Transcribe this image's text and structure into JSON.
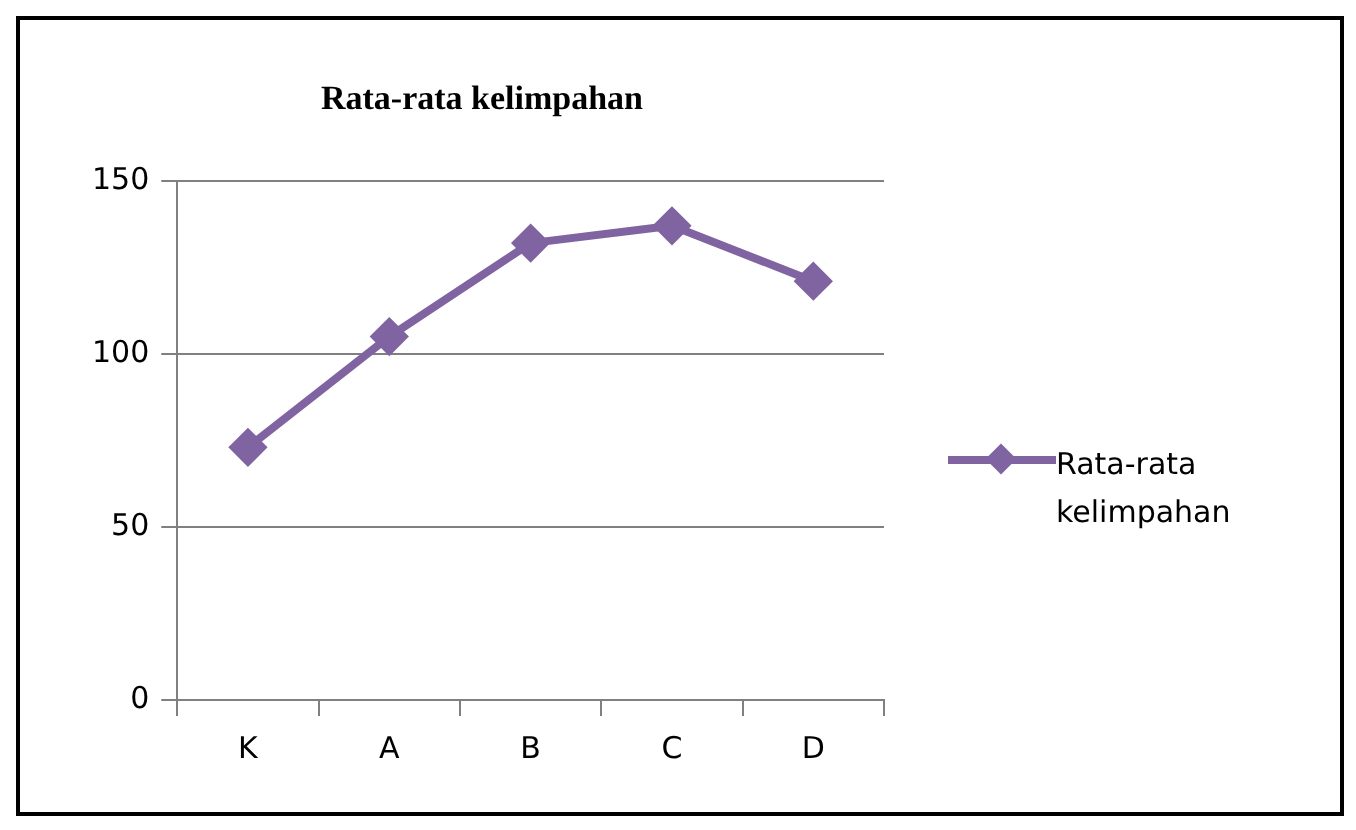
{
  "chart_data": {
    "type": "line",
    "title": "Rata-rata kelimpahan",
    "categories": [
      "K",
      "A",
      "B",
      "C",
      "D"
    ],
    "series": [
      {
        "name": "Rata-rata kelimpahan",
        "color": "#8064a2",
        "values": [
          73,
          105,
          132,
          137,
          121
        ]
      }
    ],
    "ylim": [
      0,
      150
    ],
    "yticks": [
      0,
      50,
      100,
      150
    ],
    "grid": "y",
    "legend": "right",
    "marker": "diamond",
    "line_style": "solid"
  }
}
